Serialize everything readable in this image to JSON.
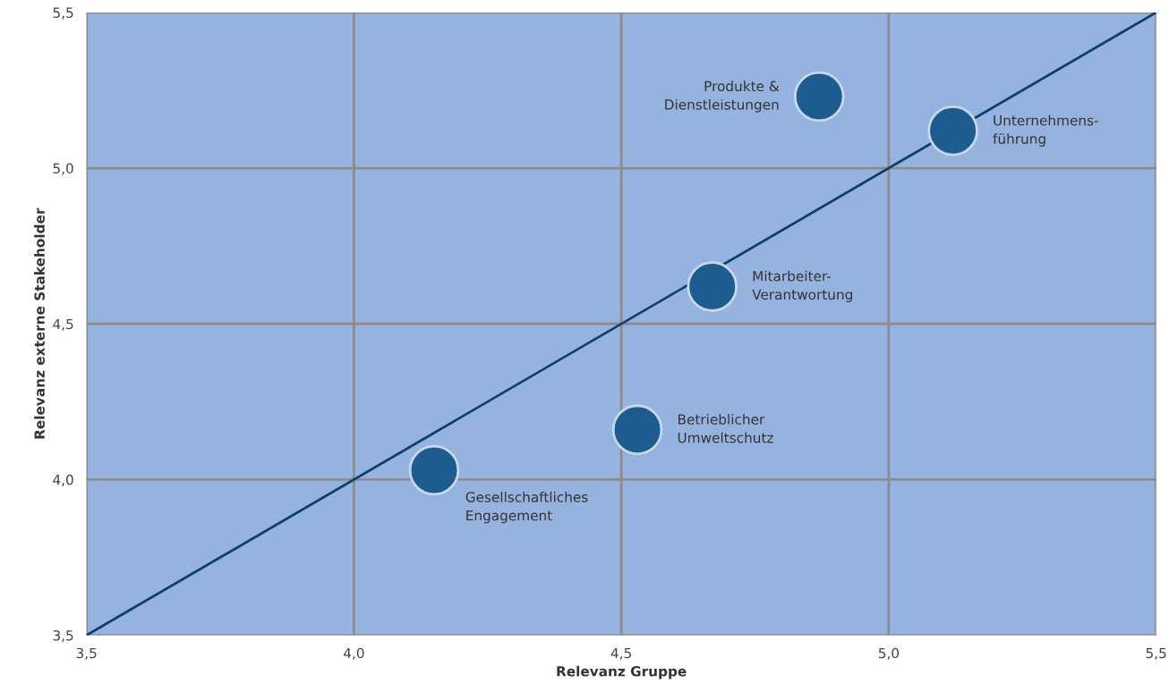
{
  "chart_data": {
    "type": "scatter",
    "xlabel": "Relevanz Gruppe",
    "ylabel": "Relevanz externe Stakeholder",
    "series": [
      {
        "name": "Produkte &\nDienstleistungen",
        "color": "#1d5c8f",
        "marker": "circle",
        "x": [
          4.87
        ],
        "values": [
          5.23
        ]
      },
      {
        "name": "Unternehmens-\nführung",
        "color": "#1d5c8f",
        "marker": "circle",
        "x": [
          5.12
        ],
        "values": [
          5.12
        ]
      },
      {
        "name": "Mitarbeiter-\nVerantwortung",
        "color": "#1d5c8f",
        "marker": "circle",
        "x": [
          4.67
        ],
        "values": [
          4.62
        ]
      },
      {
        "name": "Betrieblicher\nUmweltschutz",
        "color": "#1d5c8f",
        "marker": "circle",
        "x": [
          4.53
        ],
        "values": [
          4.16
        ]
      },
      {
        "name": "Gesellschaftliches\nEngagement",
        "color": "#1d5c8f",
        "marker": "circle",
        "x": [
          4.15
        ],
        "values": [
          4.03
        ]
      },
      {
        "type": "line",
        "color": "#0d3f6e",
        "x": [
          3.5,
          5.5
        ],
        "values": [
          3.5,
          5.5
        ]
      }
    ],
    "xlim": [
      3.5,
      5.5
    ],
    "ylim": [
      3.5,
      5.5
    ],
    "xticks": [
      {
        "value": 3.5,
        "label": "3,5"
      },
      {
        "value": 4.0,
        "label": "4,0"
      },
      {
        "value": 4.5,
        "label": "4,5"
      },
      {
        "value": 5.0,
        "label": "5,0"
      },
      {
        "value": 5.5,
        "label": "5,5"
      }
    ],
    "yticks": [
      {
        "value": 3.5,
        "label": "3,5"
      },
      {
        "value": 4.0,
        "label": "4,0"
      },
      {
        "value": 4.5,
        "label": "4,5"
      },
      {
        "value": 5.0,
        "label": "5,0"
      },
      {
        "value": 5.5,
        "label": "5,5"
      }
    ],
    "grid": true
  }
}
